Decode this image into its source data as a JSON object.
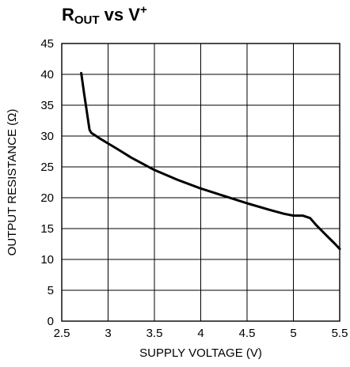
{
  "chart_data": {
    "type": "line",
    "title": {
      "main": "R",
      "sub": "OUT",
      "mid": " vs V",
      "sup": "+"
    },
    "xlabel": "SUPPLY VOLTAGE (V)",
    "ylabel": "OUTPUT RESISTANCE (Ω)",
    "xlim": [
      2.5,
      5.5
    ],
    "ylim": [
      0,
      45
    ],
    "x_ticks": [
      "2.5",
      "3",
      "3.5",
      "4",
      "4.5",
      "5",
      "5.5"
    ],
    "y_ticks": [
      "0",
      "5",
      "10",
      "15",
      "20",
      "25",
      "30",
      "35",
      "40",
      "45"
    ],
    "grid": true,
    "line_color": "#000000",
    "series": [
      {
        "x": [
          2.71,
          2.74,
          2.77,
          2.79,
          2.8,
          2.82,
          2.85,
          2.9,
          3.0,
          3.1,
          3.25,
          3.5,
          3.75,
          4.0,
          4.25,
          4.5,
          4.75,
          4.9,
          5.0,
          5.1,
          5.18,
          5.25,
          5.35,
          5.45,
          5.5
        ],
        "y": [
          40.2,
          37.0,
          34.0,
          32.0,
          31.0,
          30.5,
          30.2,
          29.7,
          28.8,
          27.9,
          26.5,
          24.5,
          22.9,
          21.5,
          20.3,
          19.1,
          18.0,
          17.4,
          17.1,
          17.1,
          16.7,
          15.5,
          14.0,
          12.5,
          11.7
        ]
      }
    ]
  }
}
